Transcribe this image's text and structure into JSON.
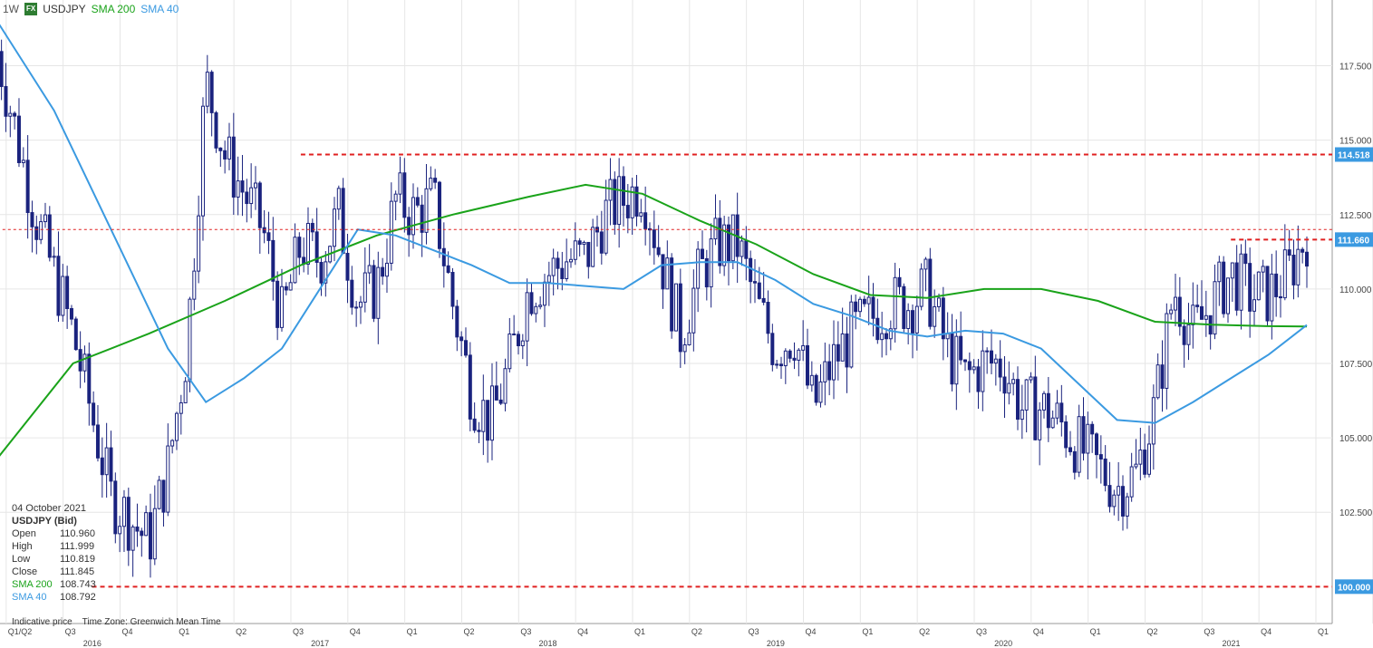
{
  "header": {
    "interval": "1W",
    "badge": "FX",
    "symbol": "USDJPY",
    "sma200_label": "SMA 200",
    "sma40_label": "SMA 40"
  },
  "info": {
    "date": "04 October 2021",
    "title": "USDJPY (Bid)",
    "rows": [
      {
        "k": "Open",
        "v": "110.960"
      },
      {
        "k": "High",
        "v": "111.999"
      },
      {
        "k": "Low",
        "v": "110.819"
      },
      {
        "k": "Close",
        "v": "111.845"
      },
      {
        "k": "SMA 200",
        "v": "108.743"
      },
      {
        "k": "SMA 40",
        "v": "108.792"
      }
    ]
  },
  "footer": {
    "indicative": "Indicative price",
    "timezone": "Time Zone: Greenwich Mean Time"
  },
  "colors": {
    "candle": "#1a237e",
    "sma200": "#1aa31a",
    "sma40": "#3b9ae1",
    "level": "#e02020",
    "axis_tag": "#3b9ae1",
    "grid": "#e6e6e6"
  },
  "chart_data": {
    "type": "candlestick",
    "ylim": [
      99.2,
      119.1
    ],
    "y_ticks": [
      "117.500",
      "115.000",
      "112.500",
      "110.000",
      "107.500",
      "105.000",
      "102.500"
    ],
    "price_tags": [
      {
        "label": "114.518",
        "value": 114.518
      },
      {
        "label": "111.660",
        "value": 111.66
      },
      {
        "label": "100.000",
        "value": 100.0
      }
    ],
    "levels": [
      {
        "value": 114.518,
        "from_date": "2017-05"
      },
      {
        "value": 112.0,
        "from_date": "2016-01"
      },
      {
        "value": 111.66,
        "from_date": "2021-06"
      },
      {
        "value": 100.0,
        "from_date": "2016-06"
      }
    ],
    "x_quarters": [
      "Q1/Q2",
      "Q3",
      "Q4",
      "Q1",
      "Q2",
      "Q3",
      "Q4",
      "Q1",
      "Q2",
      "Q3",
      "Q4",
      "Q1",
      "Q2",
      "Q3",
      "Q4",
      "Q1",
      "Q2",
      "Q3",
      "Q4",
      "Q1",
      "Q2",
      "Q3",
      "Q4",
      "Q1",
      "Q2",
      "Q3",
      "Q4"
    ],
    "x_years": [
      "2016",
      "2017",
      "2018",
      "2019",
      "2020",
      "2021"
    ],
    "close_anchors": [
      [
        "2016-01",
        118.0
      ],
      [
        "2016-03",
        112.5
      ],
      [
        "2016-05",
        108.5
      ],
      [
        "2016-07",
        103.0
      ],
      [
        "2016-09",
        101.5
      ],
      [
        "2016-10",
        104.0
      ],
      [
        "2016-11",
        108.0
      ],
      [
        "2016-12",
        117.0
      ],
      [
        "2017-01",
        114.5
      ],
      [
        "2017-03",
        112.0
      ],
      [
        "2017-04",
        109.0
      ],
      [
        "2017-05",
        111.5
      ],
      [
        "2017-06",
        111.0
      ],
      [
        "2017-07",
        112.5
      ],
      [
        "2017-08",
        109.5
      ],
      [
        "2017-09",
        110.0
      ],
      [
        "2017-10",
        113.0
      ],
      [
        "2017-11",
        112.5
      ],
      [
        "2017-12",
        113.0
      ],
      [
        "2018-01",
        109.5
      ],
      [
        "2018-02",
        106.5
      ],
      [
        "2018-03",
        105.5
      ],
      [
        "2018-04",
        107.5
      ],
      [
        "2018-05",
        110.0
      ],
      [
        "2018-06",
        110.5
      ],
      [
        "2018-07",
        111.0
      ],
      [
        "2018-08",
        111.0
      ],
      [
        "2018-09",
        112.5
      ],
      [
        "2018-10",
        113.0
      ],
      [
        "2018-11",
        113.5
      ],
      [
        "2018-12",
        111.0
      ],
      [
        "2019-01",
        108.5
      ],
      [
        "2019-02",
        110.5
      ],
      [
        "2019-03",
        111.5
      ],
      [
        "2019-04",
        111.5
      ],
      [
        "2019-05",
        109.5
      ],
      [
        "2019-06",
        108.0
      ],
      [
        "2019-07",
        108.5
      ],
      [
        "2019-08",
        106.0
      ],
      [
        "2019-09",
        107.5
      ],
      [
        "2019-10",
        108.5
      ],
      [
        "2019-11",
        109.0
      ],
      [
        "2019-12",
        109.5
      ],
      [
        "2020-01",
        109.5
      ],
      [
        "2020-02",
        110.0
      ],
      [
        "2020-03",
        108.0
      ],
      [
        "2020-04",
        107.0
      ],
      [
        "2020-05",
        107.5
      ],
      [
        "2020-06",
        107.5
      ],
      [
        "2020-07",
        106.0
      ],
      [
        "2020-08",
        106.0
      ],
      [
        "2020-09",
        105.5
      ],
      [
        "2020-10",
        104.7
      ],
      [
        "2020-11",
        104.0
      ],
      [
        "2020-12",
        103.3
      ],
      [
        "2021-01",
        103.8
      ],
      [
        "2021-02",
        106.0
      ],
      [
        "2021-03",
        110.0
      ],
      [
        "2021-04",
        108.5
      ],
      [
        "2021-05",
        109.5
      ],
      [
        "2021-06",
        110.5
      ],
      [
        "2021-07",
        109.8
      ],
      [
        "2021-08",
        109.8
      ],
      [
        "2021-09",
        110.5
      ],
      [
        "2021-10",
        111.845
      ]
    ],
    "sma200": [
      [
        "2016-01",
        104.3
      ],
      [
        "2016-05",
        107.5
      ],
      [
        "2016-09",
        108.5
      ],
      [
        "2017-01",
        109.6
      ],
      [
        "2017-05",
        110.8
      ],
      [
        "2017-09",
        111.8
      ],
      [
        "2018-01",
        112.5
      ],
      [
        "2018-05",
        113.1
      ],
      [
        "2018-08",
        113.5
      ],
      [
        "2018-11",
        113.2
      ],
      [
        "2019-02",
        112.3
      ],
      [
        "2019-05",
        111.5
      ],
      [
        "2019-08",
        110.5
      ],
      [
        "2019-11",
        109.8
      ],
      [
        "2020-02",
        109.7
      ],
      [
        "2020-05",
        110.0
      ],
      [
        "2020-08",
        110.0
      ],
      [
        "2020-11",
        109.6
      ],
      [
        "2021-02",
        108.9
      ],
      [
        "2021-05",
        108.8
      ],
      [
        "2021-08",
        108.75
      ],
      [
        "2021-10",
        108.743
      ]
    ],
    "sma40": [
      [
        "2016-01",
        119.0
      ],
      [
        "2016-04",
        116.0
      ],
      [
        "2016-07",
        112.0
      ],
      [
        "2016-10",
        108.0
      ],
      [
        "2016-12",
        106.2
      ],
      [
        "2017-02",
        107.0
      ],
      [
        "2017-04",
        108.0
      ],
      [
        "2017-06",
        110.0
      ],
      [
        "2017-08",
        112.0
      ],
      [
        "2017-10",
        111.8
      ],
      [
        "2017-12",
        111.3
      ],
      [
        "2018-02",
        110.8
      ],
      [
        "2018-04",
        110.2
      ],
      [
        "2018-06",
        110.2
      ],
      [
        "2018-08",
        110.1
      ],
      [
        "2018-10",
        110.0
      ],
      [
        "2018-12",
        110.8
      ],
      [
        "2019-02",
        110.9
      ],
      [
        "2019-04",
        110.9
      ],
      [
        "2019-06",
        110.3
      ],
      [
        "2019-08",
        109.5
      ],
      [
        "2019-10",
        109.1
      ],
      [
        "2019-12",
        108.6
      ],
      [
        "2020-02",
        108.4
      ],
      [
        "2020-04",
        108.6
      ],
      [
        "2020-06",
        108.5
      ],
      [
        "2020-08",
        108.0
      ],
      [
        "2020-10",
        106.8
      ],
      [
        "2020-12",
        105.6
      ],
      [
        "2021-02",
        105.5
      ],
      [
        "2021-04",
        106.2
      ],
      [
        "2021-06",
        107.0
      ],
      [
        "2021-08",
        107.8
      ],
      [
        "2021-10",
        108.792
      ]
    ]
  }
}
